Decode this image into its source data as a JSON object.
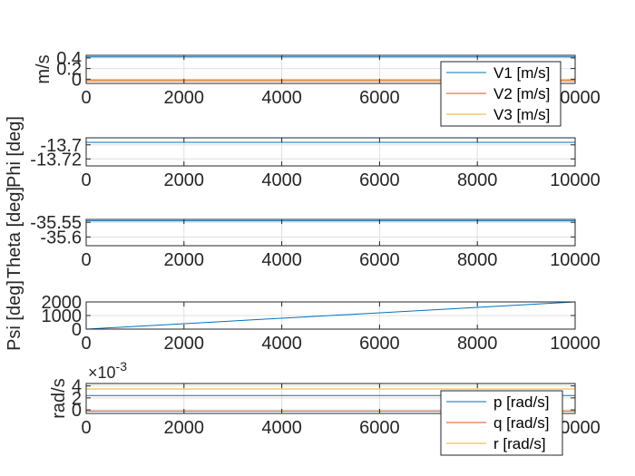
{
  "chart_data": [
    {
      "type": "line",
      "ylabel": "m/s",
      "xlim": [
        0,
        10000
      ],
      "ylim": [
        -0.08,
        0.45
      ],
      "xticks": [
        0,
        2000,
        4000,
        6000,
        8000,
        10000
      ],
      "yticks": [
        0,
        0.2,
        0.4
      ],
      "ytick_labels": [
        "0",
        "0.2",
        "0.4"
      ],
      "grid": true,
      "legend": "bottom-right",
      "series": [
        {
          "name": "V1 [m/s]",
          "color": "#0072BD",
          "x": [
            0,
            10000
          ],
          "y": [
            0.42,
            0.42
          ]
        },
        {
          "name": "V2 [m/s]",
          "color": "#D95319",
          "x": [
            0,
            10000
          ],
          "y": [
            -0.03,
            -0.03
          ]
        },
        {
          "name": "V3 [m/s]",
          "color": "#EDB120",
          "x": [
            0,
            10000
          ],
          "y": [
            -0.01,
            -0.01
          ]
        }
      ]
    },
    {
      "type": "line",
      "ylabel": "Phi [deg]",
      "xlim": [
        0,
        10000
      ],
      "ylim": [
        -13.73,
        -13.69
      ],
      "xticks": [
        0,
        2000,
        4000,
        6000,
        8000,
        10000
      ],
      "yticks": [
        -13.72,
        -13.7
      ],
      "ytick_labels": [
        "-13.72",
        "-13.7"
      ],
      "grid": true,
      "series": [
        {
          "name": "",
          "color": "#0072BD",
          "x": [
            0,
            10000
          ],
          "y": [
            -13.6965,
            -13.6965
          ]
        }
      ]
    },
    {
      "type": "line",
      "ylabel": "Theta [deg]",
      "xlim": [
        0,
        10000
      ],
      "ylim": [
        -35.63,
        -35.54
      ],
      "xticks": [
        0,
        2000,
        4000,
        6000,
        8000,
        10000
      ],
      "yticks": [
        -35.6,
        -35.55
      ],
      "ytick_labels": [
        "-35.6",
        "-35.55"
      ],
      "grid": true,
      "series": [
        {
          "name": "",
          "color": "#0072BD",
          "x": [
            0,
            10000
          ],
          "y": [
            -35.545,
            -35.545
          ]
        }
      ]
    },
    {
      "type": "line",
      "ylabel": "Psi [deg]",
      "xlim": [
        0,
        10000
      ],
      "ylim": [
        0,
        2000
      ],
      "xticks": [
        0,
        2000,
        4000,
        6000,
        8000,
        10000
      ],
      "yticks": [
        0,
        1000,
        2000
      ],
      "ytick_labels": [
        "0",
        "1000",
        "2000"
      ],
      "grid": true,
      "series": [
        {
          "name": "",
          "color": "#0072BD",
          "x": [
            0,
            10000
          ],
          "y": [
            0,
            2000
          ]
        }
      ]
    },
    {
      "type": "line",
      "ylabel": "rad/s",
      "exponent_label": "×10",
      "exponent_power": "-3",
      "xlim": [
        0,
        10000
      ],
      "ylim": [
        -0.0006,
        0.0044
      ],
      "xticks": [
        0,
        2000,
        4000,
        6000,
        8000,
        10000
      ],
      "yticks": [
        0,
        0.002,
        0.004
      ],
      "ytick_labels": [
        "0",
        "2",
        "4"
      ],
      "grid": true,
      "legend": "bottom-right",
      "series": [
        {
          "name": "p [rad/s]",
          "color": "#0072BD",
          "x": [
            0,
            10000
          ],
          "y": [
            0.0024,
            0.0024
          ]
        },
        {
          "name": "q [rad/s]",
          "color": "#D95319",
          "x": [
            0,
            10000
          ],
          "y": [
            -0.0002,
            -0.0002
          ]
        },
        {
          "name": "r [rad/s]",
          "color": "#EDB120",
          "x": [
            0,
            10000
          ],
          "y": [
            0.0035,
            0.0035
          ]
        }
      ]
    }
  ]
}
